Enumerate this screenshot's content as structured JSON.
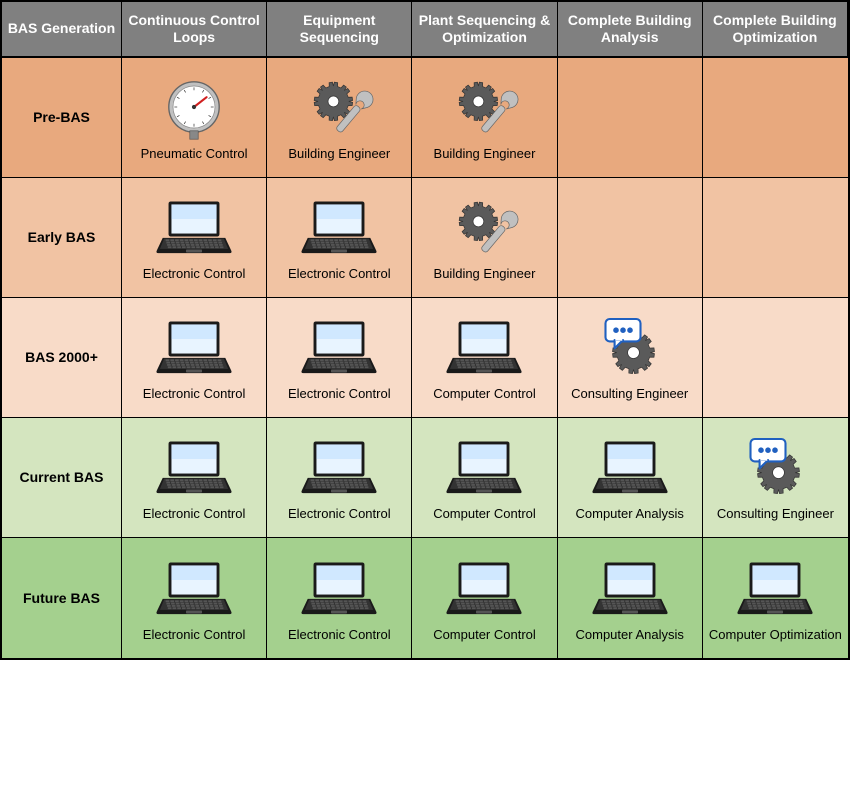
{
  "columns": [
    "BAS Generation",
    "Continuous Control Loops",
    "Equipment Sequencing",
    "Plant Sequencing & Optimization",
    "Complete Building Analysis",
    "Complete Building Optimization"
  ],
  "rows": [
    {
      "label": "Pre-BAS",
      "bg": "#e8a97e",
      "cells": [
        {
          "icon": "gauge",
          "text": "Pneumatic Control"
        },
        {
          "icon": "gearwrench",
          "text": "Building Engineer"
        },
        {
          "icon": "gearwrench",
          "text": "Building Engineer"
        },
        {
          "icon": null,
          "text": ""
        },
        {
          "icon": null,
          "text": ""
        }
      ]
    },
    {
      "label": "Early BAS",
      "bg": "#f1c3a3",
      "cells": [
        {
          "icon": "laptop",
          "text": "Electronic Control"
        },
        {
          "icon": "laptop",
          "text": "Electronic Control"
        },
        {
          "icon": "gearwrench",
          "text": "Building Engineer"
        },
        {
          "icon": null,
          "text": ""
        },
        {
          "icon": null,
          "text": ""
        }
      ]
    },
    {
      "label": "BAS 2000+",
      "bg": "#f8dbc8",
      "cells": [
        {
          "icon": "laptop",
          "text": "Electronic Control"
        },
        {
          "icon": "laptop",
          "text": "Electronic Control"
        },
        {
          "icon": "laptop",
          "text": "Computer Control"
        },
        {
          "icon": "chatgear",
          "text": "Consulting Engineer"
        },
        {
          "icon": null,
          "text": ""
        }
      ]
    },
    {
      "label": "Current BAS",
      "bg": "#d4e5bf",
      "cells": [
        {
          "icon": "laptop",
          "text": "Electronic Control"
        },
        {
          "icon": "laptop",
          "text": "Electronic Control"
        },
        {
          "icon": "laptop",
          "text": "Computer Control"
        },
        {
          "icon": "laptop",
          "text": "Computer Analysis"
        },
        {
          "icon": "chatgear",
          "text": "Consulting Engineer"
        }
      ]
    },
    {
      "label": "Future BAS",
      "bg": "#a4d08e",
      "cells": [
        {
          "icon": "laptop",
          "text": "Electronic Control"
        },
        {
          "icon": "laptop",
          "text": "Electronic Control"
        },
        {
          "icon": "laptop",
          "text": "Computer Control"
        },
        {
          "icon": "laptop",
          "text": "Computer Analysis"
        },
        {
          "icon": "laptop",
          "text": "Computer Optimization"
        }
      ]
    }
  ],
  "colors": {
    "header_bg": "#808080",
    "header_text": "#ffffff",
    "border": "#000000",
    "gear": "#5a5a5a",
    "wrench": "#c0c0c0",
    "laptop_body": "#1a1a1a",
    "laptop_screen": "#e8f4ff",
    "gauge_face": "#ffffff",
    "gauge_rim": "#c0c0c0",
    "gauge_needle": "#d02020",
    "chat_bubble": "#ffffff",
    "chat_border": "#2060c0",
    "chat_dots": "#2060c0"
  },
  "icon_size": 70,
  "font": {
    "header_size": 14,
    "rowlabel_size": 14,
    "cell_size": 13
  }
}
